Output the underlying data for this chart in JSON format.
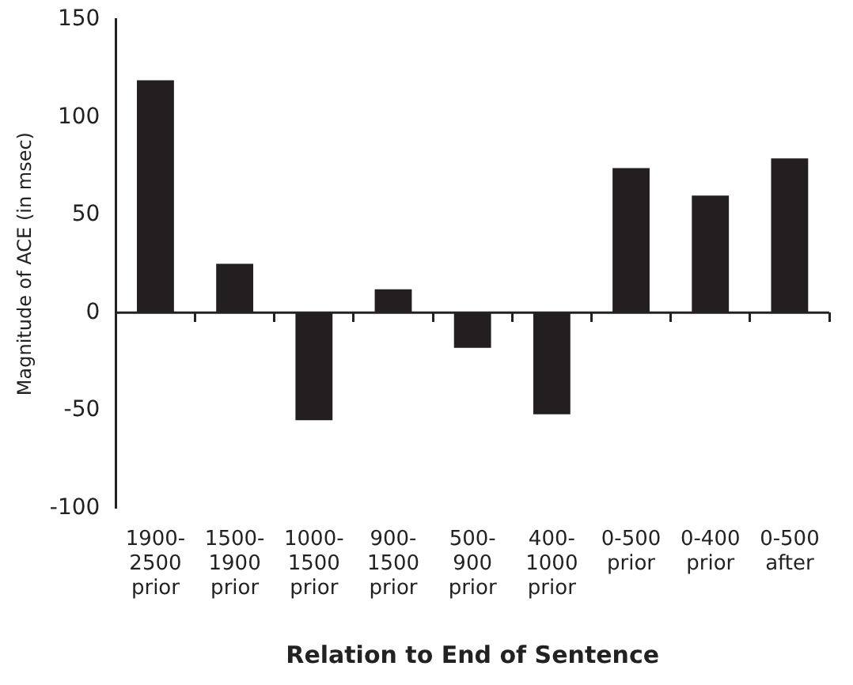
{
  "chart_data": {
    "type": "bar",
    "xlabel": "Relation to End of Sentence",
    "ylabel": "Magnitude of ACE (in msec)",
    "categories": [
      "1900-2500 prior",
      "1500-1900 prior",
      "1000-1500 prior",
      "900-1500 prior",
      "500-900 prior",
      "400-1000 prior",
      "0-500 prior",
      "0-400 prior",
      "0-500 after"
    ],
    "values": [
      119,
      25,
      -55,
      12,
      -18,
      -52,
      74,
      60,
      79
    ],
    "color": "#231f20",
    "ylim": [
      -100,
      150
    ],
    "yticks": [
      -100,
      -50,
      0,
      50,
      100,
      150
    ],
    "grid": false,
    "ref_lines": [
      {
        "axis": "y",
        "value": 0,
        "color": "#222222"
      }
    ],
    "legend": false
  }
}
